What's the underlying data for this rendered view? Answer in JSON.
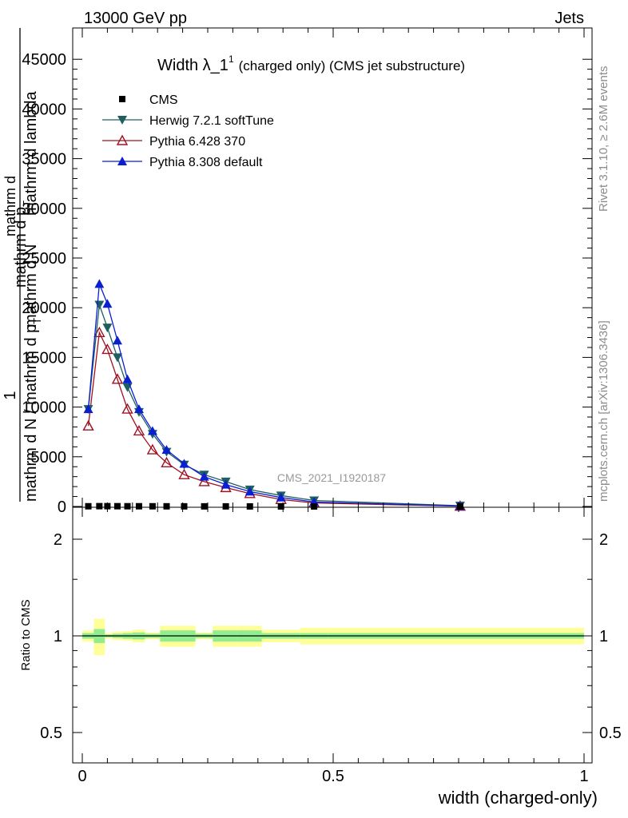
{
  "header": {
    "energy_label": "13000 GeV pp",
    "process_label": "Jets"
  },
  "side_text": {
    "rivet": "Rivet 3.1.10, ≥ 2.6M events",
    "site": "mcplots.cern.ch [arXiv:1306.3436]"
  },
  "watermark": "CMS_2021_I1920187",
  "colors": {
    "cms": "#000000",
    "herwig": "#1f5f5f",
    "pythia6": "#a01020",
    "pythia8": "#0a1fd0",
    "band_outer": "#ffff99",
    "band_inner": "#90ee90"
  },
  "chart_data": [
    {
      "type": "line",
      "title_main": "Width λ_1",
      "title_sup": "1",
      "title_rest": "(charged only) (CMS jet substructure)",
      "ylabel_parts": [
        "1",
        "mathrm d N / mathrm d p",
        "T",
        "mathrm d N",
        "mathrm d p",
        "T",
        "mathrm d lambda"
      ],
      "ylabel_prefix": "mathrm d",
      "xlim": [
        0,
        1
      ],
      "ylim": [
        0,
        48000
      ],
      "yticks": [
        0,
        5000,
        10000,
        15000,
        20000,
        25000,
        30000,
        35000,
        40000,
        45000
      ],
      "ytick_labels": [
        "0",
        "5000",
        "10000",
        "15000",
        "20000",
        "25000",
        "30000",
        "35000",
        "40000",
        "45000"
      ],
      "legend": [
        "CMS",
        "Herwig 7.2.1 softTune",
        "Pythia 6.428 370",
        "Pythia 8.308 default"
      ],
      "legend_position": "top-left",
      "x": [
        0.012,
        0.034,
        0.05,
        0.07,
        0.09,
        0.113,
        0.14,
        0.168,
        0.203,
        0.243,
        0.286,
        0.334,
        0.396,
        0.462,
        0.753
      ],
      "series": [
        {
          "name": "CMS",
          "values": [
            20,
            30,
            30,
            25,
            22,
            20,
            18,
            15,
            12,
            10,
            8,
            5,
            3,
            2,
            1
          ]
        },
        {
          "name": "Herwig 7.2.1 softTune",
          "values": [
            9800,
            20300,
            18000,
            15000,
            12000,
            9500,
            7300,
            5500,
            4200,
            3200,
            2500,
            1700,
            1100,
            600,
            80
          ]
        },
        {
          "name": "Pythia 6.428 370",
          "values": [
            8100,
            17500,
            15800,
            12800,
            9800,
            7600,
            5700,
            4400,
            3200,
            2500,
            1900,
            1300,
            700,
            350,
            30
          ]
        },
        {
          "name": "Pythia 8.308 default",
          "values": [
            9800,
            22400,
            20400,
            16700,
            12800,
            9800,
            7600,
            5700,
            4300,
            3000,
            2200,
            1500,
            900,
            450,
            40
          ]
        }
      ]
    },
    {
      "type": "area",
      "ylabel": "Ratio to CMS",
      "xlabel": "width (charged-only)",
      "xlim": [
        0,
        1
      ],
      "ylim": [
        0.35,
        2.3
      ],
      "yticks": [
        0.5,
        1,
        2
      ],
      "ytick_labels": [
        "0.5",
        "1",
        "2"
      ],
      "xticks": [
        0,
        0.5,
        1
      ],
      "xtick_labels": [
        "0",
        "0.5",
        "1"
      ],
      "bins": [
        0,
        0.023,
        0.045,
        0.06,
        0.08,
        0.1,
        0.125,
        0.155,
        0.18,
        0.2255,
        0.26,
        0.31,
        0.3575,
        0.4345,
        0.49,
        1.0
      ],
      "inner_low": [
        0.98,
        0.95,
        0.99,
        0.985,
        0.98,
        0.975,
        0.985,
        0.96,
        0.96,
        0.985,
        0.96,
        0.96,
        0.98,
        0.98,
        0.98
      ],
      "inner_high": [
        1.02,
        1.05,
        1.01,
        1.015,
        1.02,
        1.025,
        1.015,
        1.04,
        1.04,
        1.015,
        1.04,
        1.04,
        1.02,
        1.02,
        1.02
      ],
      "outer_low": [
        0.96,
        0.87,
        0.98,
        0.97,
        0.965,
        0.955,
        0.975,
        0.925,
        0.925,
        0.975,
        0.925,
        0.925,
        0.955,
        0.94,
        0.94
      ],
      "outer_high": [
        1.04,
        1.13,
        1.02,
        1.03,
        1.035,
        1.045,
        1.025,
        1.075,
        1.075,
        1.025,
        1.075,
        1.075,
        1.045,
        1.06,
        1.06
      ]
    }
  ]
}
